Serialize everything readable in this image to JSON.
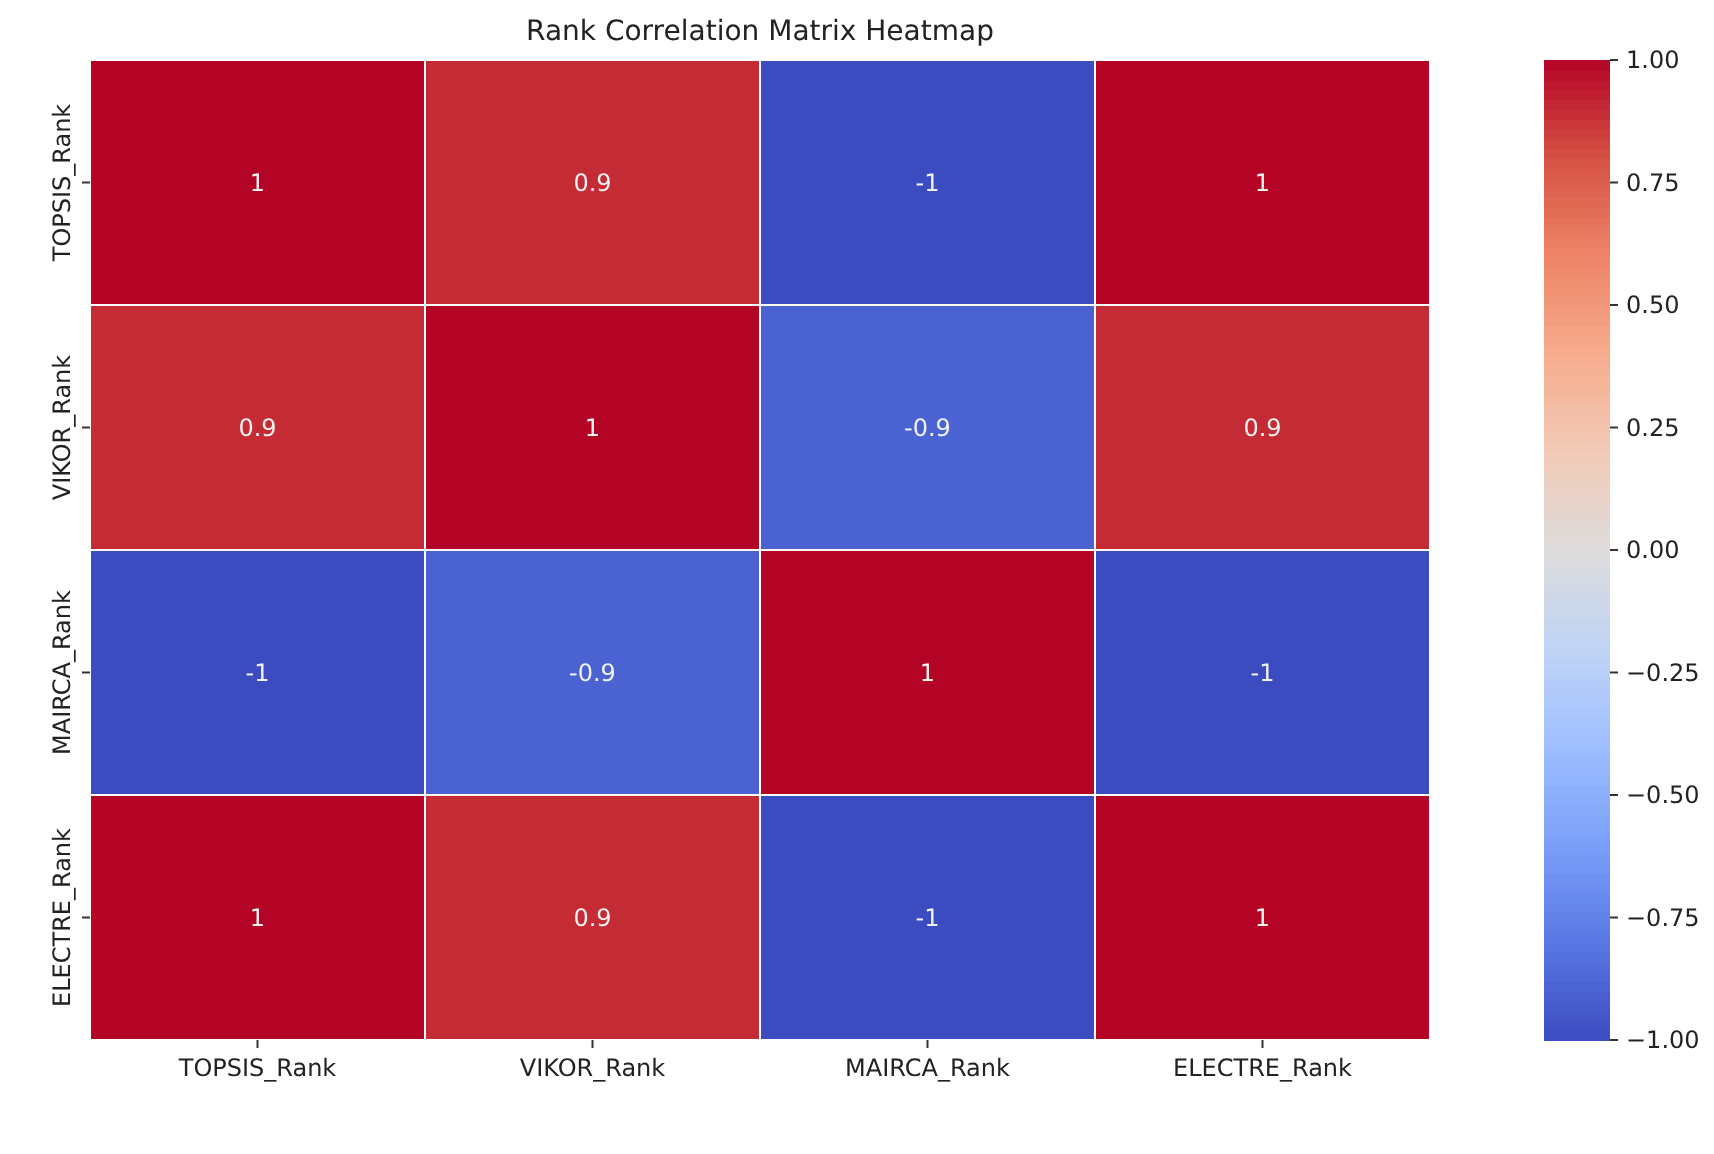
{
  "chart_data": {
    "type": "heatmap",
    "title": "Rank Correlation Matrix Heatmap",
    "categories": [
      "TOPSIS_Rank",
      "VIKOR_Rank",
      "MAIRCA_Rank",
      "ELECTRE_Rank"
    ],
    "y_categories": [
      "TOPSIS_Rank",
      "VIKOR_Rank",
      "MAIRCA_Rank",
      "ELECTRE_Rank"
    ],
    "cells": [
      [
        1,
        0.9,
        -1,
        1
      ],
      [
        0.9,
        1,
        -0.9,
        0.9
      ],
      [
        -1,
        -0.9,
        1,
        -1
      ],
      [
        1,
        0.9,
        -1,
        1
      ]
    ],
    "data_labels": true,
    "clim": [
      -1,
      1
    ],
    "cticks": [
      {
        "value": 1,
        "label": "1.00"
      },
      {
        "value": 0.75,
        "label": "0.75"
      },
      {
        "value": 0.5,
        "label": "0.50"
      },
      {
        "value": 0.25,
        "label": "0.25"
      },
      {
        "value": 0,
        "label": "0.00"
      },
      {
        "value": -0.25,
        "label": "−0.25"
      },
      {
        "value": -0.5,
        "label": "−0.50"
      },
      {
        "value": -0.75,
        "label": "−0.75"
      },
      {
        "value": -1,
        "label": "−1.00"
      }
    ]
  }
}
